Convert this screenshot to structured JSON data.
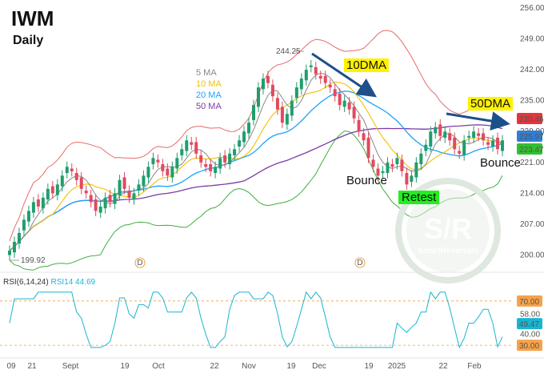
{
  "header": {
    "ticker": "IWM",
    "period": "Daily"
  },
  "legend": [
    {
      "label": "5 MA",
      "color": "#888888"
    },
    {
      "label": "10 MA",
      "color": "#f2c100"
    },
    {
      "label": "20 MA",
      "color": "#1aa3ff"
    },
    {
      "label": "50 MA",
      "color": "#7b3aa6"
    }
  ],
  "annotations": {
    "dma10": "10DMA",
    "dma50": "50DMA",
    "bounce1": "Bounce",
    "bounce2": "Bounce",
    "retest": "Retest",
    "high_label": "244.25",
    "low_label": "199.92"
  },
  "watermark": {
    "logo": "S/R",
    "name": "SmartReversals"
  },
  "price_badges": [
    {
      "value": "230.46",
      "color": "#e8333b"
    },
    {
      "value": "225.97",
      "color": "#ffffff",
      "bg": "#2f7fd8"
    },
    {
      "value": "223.47",
      "color": "#30c030"
    }
  ],
  "rsi": {
    "label": "RSI(6,14,24)",
    "value_label": "RSI14 44.69",
    "badges": [
      {
        "value": "70.00",
        "color": "#f7a24a"
      },
      {
        "value": "49.47",
        "color": "#19b5d0"
      },
      {
        "value": "30.00",
        "color": "#f7a24a"
      }
    ],
    "ticks": [
      "70.00",
      "58.00",
      "49.47",
      "40.00",
      "30.00"
    ]
  },
  "dividend_marker": "D",
  "chart_data": {
    "type": "candlestick",
    "title": "IWM",
    "subtitle": "Daily",
    "ylim": [
      197,
      256
    ],
    "yticks": [
      200,
      207,
      214,
      221,
      228,
      235,
      242,
      249,
      256
    ],
    "xticks": [
      "09",
      "21",
      "Sept",
      "19",
      "Oct",
      "22",
      "Nov",
      "19",
      "Dec",
      "19",
      "2025",
      "22",
      "Feb"
    ],
    "close": [
      201,
      203,
      205,
      208,
      210,
      212,
      211,
      213,
      215,
      214,
      216,
      218,
      220,
      219,
      217,
      215,
      214,
      212,
      210,
      211,
      213,
      212,
      214,
      217,
      215,
      213,
      214,
      216,
      218,
      220,
      222,
      221,
      219,
      218,
      220,
      222,
      224,
      226,
      225,
      223,
      221,
      220,
      219,
      220,
      222,
      221,
      223,
      224,
      226,
      228,
      230,
      234,
      238,
      240,
      239,
      236,
      233,
      230,
      232,
      235,
      238,
      240,
      242,
      243,
      241,
      240,
      239,
      238,
      236,
      234,
      235,
      233,
      231,
      228,
      226,
      222,
      220,
      218,
      219,
      221,
      220,
      222,
      219,
      216,
      218,
      221,
      223,
      225,
      228,
      229,
      227,
      228,
      226,
      224,
      223,
      226,
      227,
      228,
      227,
      226,
      225,
      226,
      224,
      226
    ],
    "series": [
      {
        "name": "5 MA",
        "color": "#888888"
      },
      {
        "name": "10 MA",
        "color": "#f2c100"
      },
      {
        "name": "20 MA",
        "color": "#1aa3ff"
      },
      {
        "name": "50 MA",
        "color": "#7b3aa6"
      }
    ],
    "last_values": {
      "ma50": 230.46,
      "close": 225.97,
      "ma20": 223.47
    },
    "rsi_levels": [
      70,
      30
    ],
    "rsi_last": 49.47
  }
}
